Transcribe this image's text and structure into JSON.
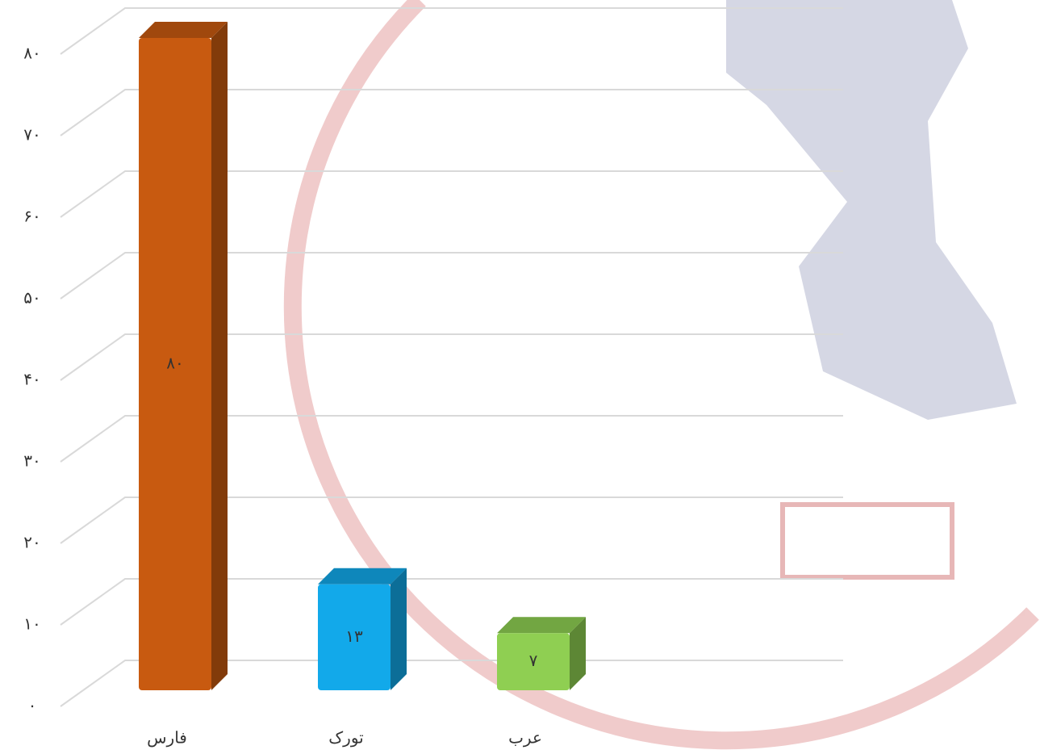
{
  "chart_data": {
    "type": "bar",
    "categories": [
      "فارس",
      "تورک",
      "عرب"
    ],
    "values": [
      80,
      13,
      7
    ],
    "value_labels": [
      "۸۰",
      "۱۳",
      "۷"
    ],
    "colors": [
      "#c85a10",
      "#12a9ea",
      "#8fcf52"
    ],
    "ylim": [
      0,
      80
    ],
    "yticks": [
      {
        "value": 0,
        "label": "۰"
      },
      {
        "value": 10,
        "label": "۱۰"
      },
      {
        "value": 20,
        "label": "۲۰"
      },
      {
        "value": 30,
        "label": "۳۰"
      },
      {
        "value": 40,
        "label": "۴۰"
      },
      {
        "value": 50,
        "label": "۵۰"
      },
      {
        "value": 60,
        "label": "۶۰"
      },
      {
        "value": 70,
        "label": "۷۰"
      },
      {
        "value": 80,
        "label": "۸۰"
      }
    ],
    "grid": true
  }
}
